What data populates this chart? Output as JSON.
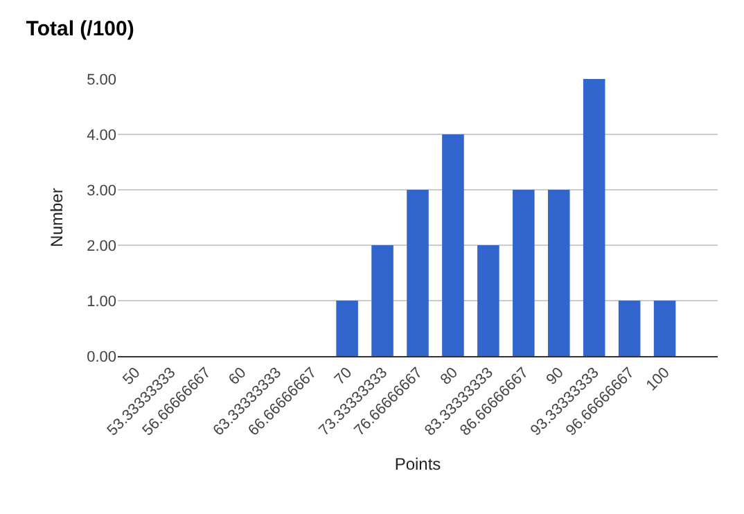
{
  "chart_data": {
    "type": "bar",
    "title": "Total (/100)",
    "xlabel": "Points",
    "ylabel": "Number",
    "categories": [
      "50",
      "53.33333333",
      "56.66666667",
      "60",
      "63.33333333",
      "66.66666667",
      "70",
      "73.33333333",
      "76.66666667",
      "80",
      "83.33333333",
      "86.66666667",
      "90",
      "93.33333333",
      "96.66666667",
      "100",
      null
    ],
    "values": [
      0,
      0,
      0,
      0,
      0,
      0,
      1,
      2,
      3,
      4,
      2,
      3,
      3,
      5,
      1,
      1,
      null
    ],
    "color": "#3366cc",
    "ylim": [
      0,
      5
    ],
    "yticks": [
      {
        "value": 0,
        "label": "0.00"
      },
      {
        "value": 1,
        "label": "1.00"
      },
      {
        "value": 2,
        "label": "2.00"
      },
      {
        "value": 3,
        "label": "3.00"
      },
      {
        "value": 4,
        "label": "4.00"
      },
      {
        "value": 5,
        "label": "5.00"
      }
    ],
    "grid": "y"
  }
}
